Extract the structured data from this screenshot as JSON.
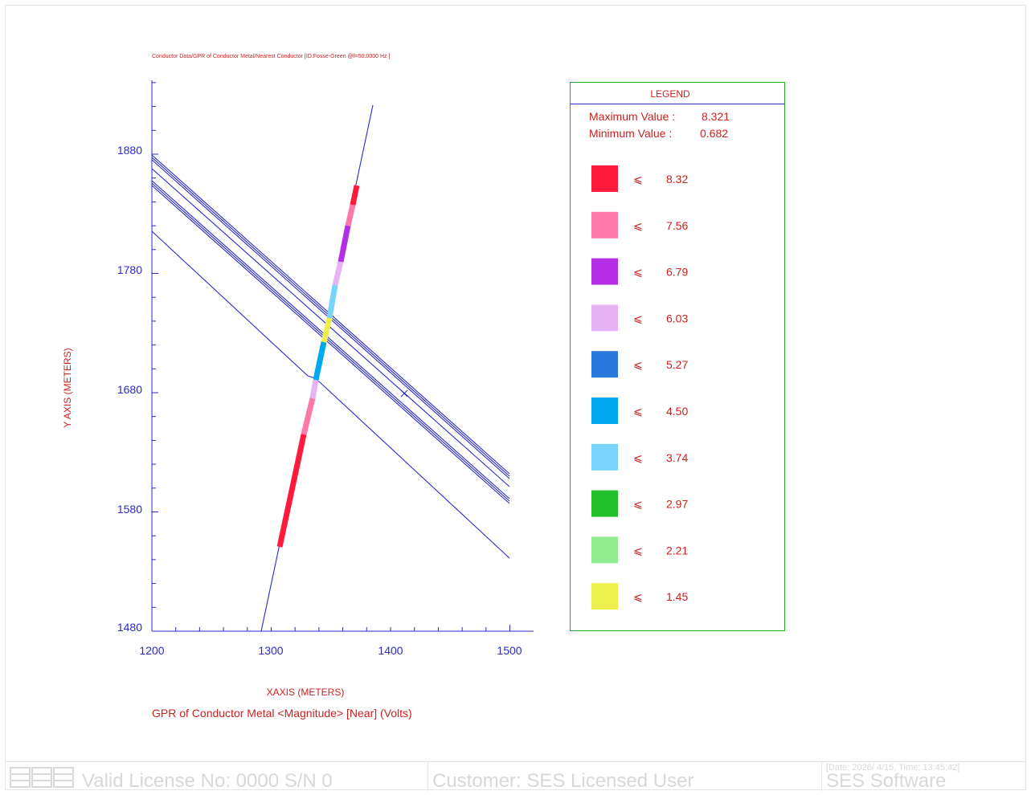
{
  "plot": {
    "title": "Conductor Data/GPR of Conductor Metal/Nearest Conductor [ID:Fosse-Green @f=50.0000 Hz ]",
    "ylabel": "Y AXIS  (METERS)",
    "xlabel": "XAXIS  (METERS)",
    "subtitle": "GPR of Conductor Metal <Magnitude> [Near] (Volts)",
    "xticks": [
      "1200",
      "1300",
      "1400",
      "1500"
    ],
    "yticks": [
      "1880",
      "1780",
      "1680",
      "1580",
      "1480"
    ],
    "colors": {
      "axis": "#2a2acc",
      "text": "#cc2222",
      "legend_border": "#22aa22"
    }
  },
  "legend": {
    "title": "LEGEND",
    "max_label": "Maximum Value :",
    "max_value": "8.321",
    "min_label": "Minimum Value :",
    "min_value": "0.682",
    "symbol": "⩽",
    "items": [
      {
        "color": "#ff1a3c",
        "value": "8.32"
      },
      {
        "color": "#ff78a8",
        "value": "7.56"
      },
      {
        "color": "#b42ee6",
        "value": "6.79"
      },
      {
        "color": "#e6b4f4",
        "value": "6.03"
      },
      {
        "color": "#2878dc",
        "value": "5.27"
      },
      {
        "color": "#00a8f0",
        "value": "4.50"
      },
      {
        "color": "#78d4fa",
        "value": "3.74"
      },
      {
        "color": "#22c02a",
        "value": "2.97"
      },
      {
        "color": "#90ee90",
        "value": "2.21"
      },
      {
        "color": "#eef050",
        "value": "1.45"
      }
    ]
  },
  "footer": {
    "license": "Valid License No: 0000 S/N 0",
    "customer": "Customer: SES Licensed User",
    "date": "[Date: 2026/ 4/15, Time: 13:45:42]",
    "software": "SES Software"
  }
}
